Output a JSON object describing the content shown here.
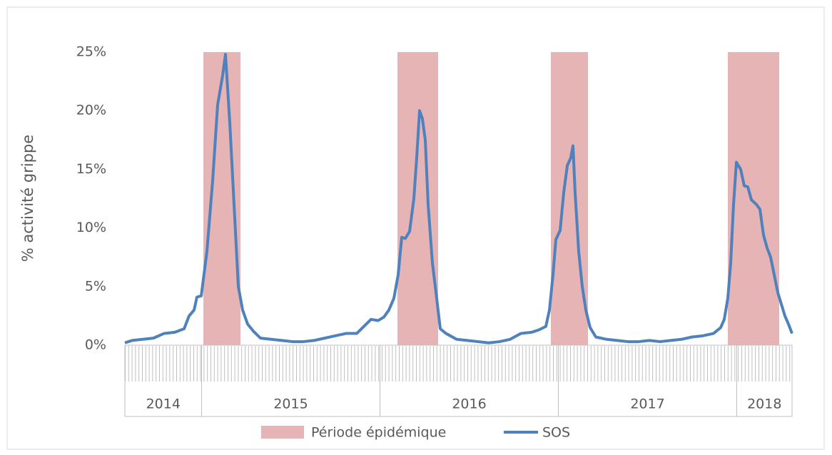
{
  "chart_data": {
    "type": "line",
    "y_label": "% activité grippe",
    "ylim": [
      0,
      25
    ],
    "yticks": [
      {
        "value": 0,
        "label": "0%"
      },
      {
        "value": 5,
        "label": "5%"
      },
      {
        "value": 10,
        "label": "10%"
      },
      {
        "value": 15,
        "label": "15%"
      },
      {
        "value": 20,
        "label": "20%"
      },
      {
        "value": 25,
        "label": "25%"
      }
    ],
    "xlim": [
      2014.57,
      2018.31
    ],
    "xticks": [
      2015,
      2016,
      2017,
      2018
    ],
    "years": [
      2014,
      2015,
      2016,
      2017,
      2018
    ],
    "periods": {
      "name": "Période épidémique",
      "color": "#e6b4b4",
      "ranges": [
        [
          2015.01,
          2015.218
        ],
        [
          2016.098,
          2016.326
        ],
        [
          2016.958,
          2017.166
        ],
        [
          2017.95,
          2018.238
        ]
      ]
    },
    "x": [
      2014.57,
      2014.61,
      2014.67,
      2014.73,
      2014.79,
      2014.85,
      2014.902,
      2014.93,
      2014.958,
      2014.974,
      2014.998,
      2015.03,
      2015.062,
      2015.09,
      2015.118,
      2015.134,
      2015.158,
      2015.182,
      2015.206,
      2015.23,
      2015.258,
      2015.29,
      2015.33,
      2015.39,
      2015.45,
      2015.51,
      2015.57,
      2015.63,
      2015.69,
      2015.75,
      2015.81,
      2015.87,
      2015.91,
      2015.95,
      2015.99,
      2016.022,
      2016.05,
      2016.078,
      2016.102,
      2016.122,
      2016.142,
      2016.166,
      2016.19,
      2016.206,
      2016.222,
      2016.238,
      2016.254,
      2016.27,
      2016.294,
      2016.318,
      2016.338,
      2016.37,
      2016.43,
      2016.49,
      2016.55,
      2016.61,
      2016.67,
      2016.73,
      2016.79,
      2016.85,
      2016.89,
      2016.93,
      2016.95,
      2016.97,
      2016.986,
      2017.01,
      2017.03,
      2017.05,
      2017.07,
      2017.082,
      2017.094,
      2017.114,
      2017.134,
      2017.154,
      2017.178,
      2017.21,
      2017.27,
      2017.33,
      2017.39,
      2017.45,
      2017.51,
      2017.57,
      2017.63,
      2017.69,
      2017.75,
      2017.81,
      2017.87,
      2017.91,
      2017.93,
      2017.95,
      2017.966,
      2017.982,
      2017.998,
      2018.022,
      2018.042,
      2018.062,
      2018.082,
      2018.11,
      2018.13,
      2018.15,
      2018.17,
      2018.19,
      2018.21,
      2018.23,
      2018.25,
      2018.27,
      2018.29,
      2018.31
    ],
    "series": [
      {
        "name": "SOS",
        "color": "#4f81bd",
        "values": [
          0.2,
          0.4,
          0.5,
          0.6,
          1.0,
          1.1,
          1.4,
          2.5,
          3.0,
          4.1,
          4.2,
          8.0,
          14,
          20.5,
          23,
          24.8,
          19,
          12,
          5,
          3,
          1.8,
          1.2,
          0.6,
          0.5,
          0.4,
          0.3,
          0.3,
          0.4,
          0.6,
          0.8,
          1.0,
          1.0,
          1.6,
          2.2,
          2.1,
          2.4,
          3.0,
          4.0,
          6.0,
          9.2,
          9.1,
          9.7,
          12.5,
          16,
          20,
          19.3,
          17.5,
          12,
          7,
          4,
          1.4,
          1.0,
          0.5,
          0.4,
          0.3,
          0.2,
          0.3,
          0.5,
          1.0,
          1.1,
          1.3,
          1.6,
          3.0,
          6,
          9.0,
          9.8,
          13,
          15.3,
          16,
          17,
          13,
          8,
          5,
          3,
          1.5,
          0.7,
          0.5,
          0.4,
          0.3,
          0.3,
          0.4,
          0.3,
          0.4,
          0.5,
          0.7,
          0.8,
          1.0,
          1.5,
          2.2,
          4.0,
          7,
          12,
          15.6,
          15.0,
          13.6,
          13.5,
          12.4,
          12,
          11.6,
          9.4,
          8.3,
          7.5,
          6,
          4.5,
          3.5,
          2.5,
          1.8,
          1.0
        ]
      }
    ]
  }
}
